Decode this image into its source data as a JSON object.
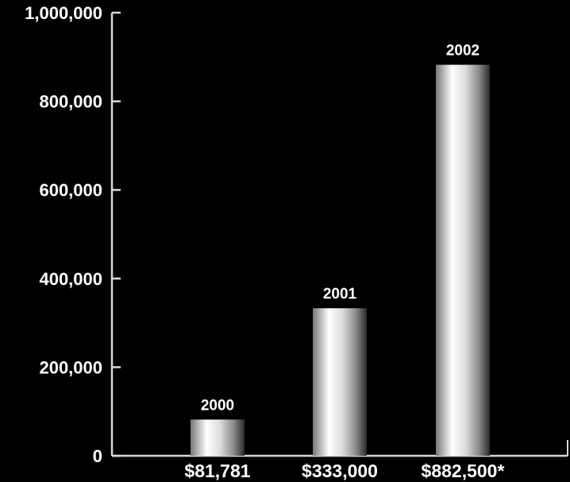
{
  "chart_data": {
    "type": "bar",
    "categories": [
      "$81,781",
      "$333,000",
      "$882,500*"
    ],
    "bar_labels": [
      "2000",
      "2001",
      "2002"
    ],
    "values": [
      81781,
      333000,
      882500
    ],
    "ylim": [
      0,
      1000000
    ],
    "yticks": [
      0,
      200000,
      400000,
      600000,
      800000,
      1000000
    ],
    "ytick_labels": [
      "0",
      "200,000",
      "400,000",
      "600,000",
      "800,000",
      "1,000,000"
    ],
    "title": "",
    "xlabel": "",
    "ylabel": "",
    "grid": false,
    "colors": {
      "background": "#000000",
      "axis": "#d9d9d9",
      "text": "#ffffff",
      "bar_light": "#ffffff",
      "bar_dark": "#2a2a2a"
    }
  }
}
